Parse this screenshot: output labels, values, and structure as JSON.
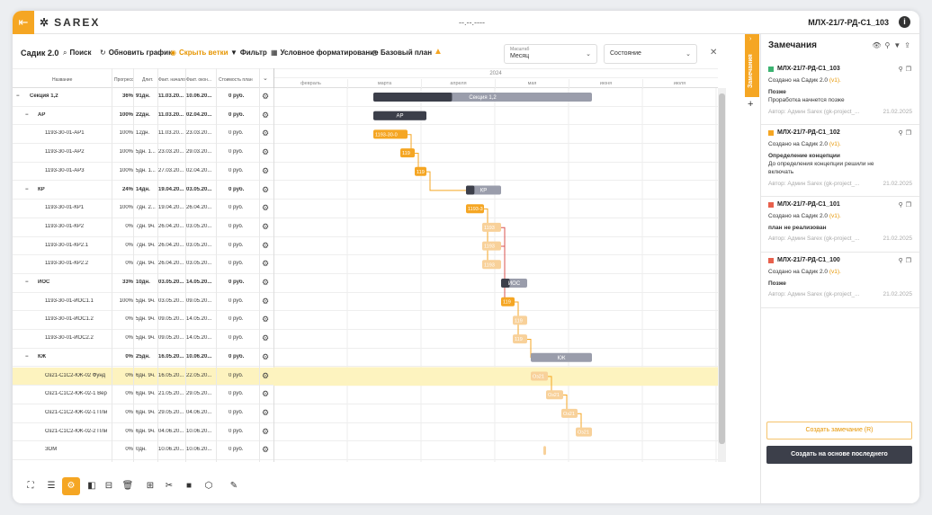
{
  "header": {
    "logo": "SAREX",
    "logo_mark": "✲",
    "center": "--.--.----",
    "project": "МЛХ-21/7-РД-С1_103",
    "info_icon": "i"
  },
  "toolbar": {
    "title": "Садик 2.0",
    "search": "Поиск",
    "refresh": "Обновить график",
    "hide": "Скрыть ветки",
    "filter": "Фильтр",
    "cond": "Условное форматирование",
    "baseline": "Базовый план",
    "scale_label": "Масштаб",
    "scale_value": "Месяц",
    "state_value": "Состояние"
  },
  "columns": {
    "name": "Название",
    "progress": "Прогресс",
    "duration": "Длит.",
    "fact_start": "Факт. начало",
    "fact_end": "Факт. окон...",
    "cost": "Стоимость план"
  },
  "timeline": {
    "year": "2024",
    "months": [
      "февраль",
      "марта",
      "апреля",
      "мая",
      "июня",
      "июля"
    ]
  },
  "rows": [
    {
      "lvl": 0,
      "toggle": "−",
      "name": "Секция 1,2",
      "progress": "36%",
      "duration": "91дн.",
      "start": "11.03.20...",
      "end": "10.06.20...",
      "cost": "0 руб.",
      "bold": true,
      "bar": {
        "s": 111,
        "e": 354,
        "type": "group",
        "fill": 0.36,
        "label": "Секция 1,2"
      }
    },
    {
      "lvl": 1,
      "toggle": "−",
      "name": "АР",
      "progress": "100%",
      "duration": "22дн.",
      "start": "11.03.20...",
      "end": "02.04.20...",
      "cost": "0 руб.",
      "bold": true,
      "bar": {
        "s": 111,
        "e": 170,
        "type": "group",
        "fill": 1,
        "label": "АР"
      }
    },
    {
      "lvl": 2,
      "name": "1193-30-01-АР1",
      "progress": "100%",
      "duration": "12дн.",
      "start": "11.03.20...",
      "end": "23.03.20...",
      "cost": "0 руб.",
      "bar": {
        "s": 111,
        "e": 149,
        "type": "task",
        "label": "1193-30-0"
      }
    },
    {
      "lvl": 2,
      "name": "1193-30-01-АР2",
      "progress": "100%",
      "duration": "5дн. 1...",
      "start": "23.03.20...",
      "end": "29.03.20...",
      "cost": "0 руб.",
      "bar": {
        "s": 141,
        "e": 157,
        "type": "task",
        "label": "119"
      }
    },
    {
      "lvl": 2,
      "name": "1193-30-01-АР3",
      "progress": "100%",
      "duration": "5дн. 1...",
      "start": "27.03.20...",
      "end": "02.04.20...",
      "cost": "0 руб.",
      "bar": {
        "s": 157,
        "e": 170,
        "type": "task",
        "label": "119"
      }
    },
    {
      "lvl": 1,
      "toggle": "−",
      "name": "КР",
      "progress": "24%",
      "duration": "14дн.",
      "start": "19.04.20...",
      "end": "03.05.20...",
      "cost": "0 руб.",
      "bold": true,
      "bar": {
        "s": 214,
        "e": 253,
        "type": "group",
        "fill": 0.24,
        "label": "КР"
      }
    },
    {
      "lvl": 2,
      "name": "1193-30-01-КР1",
      "progress": "100%",
      "duration": "7дн. 2...",
      "start": "19.04.20...",
      "end": "26.04.20...",
      "cost": "0 руб.",
      "bar": {
        "s": 214,
        "e": 234,
        "type": "task",
        "label": "1193-3"
      }
    },
    {
      "lvl": 2,
      "name": "1193-30-01-КР2",
      "progress": "0%",
      "duration": "7дн. 9ч.",
      "start": "26.04.20...",
      "end": "03.05.20...",
      "cost": "0 руб.",
      "bar": {
        "s": 232,
        "e": 253,
        "type": "light",
        "label": "1193"
      }
    },
    {
      "lvl": 2,
      "name": "1193-30-01-КР2.1",
      "progress": "0%",
      "duration": "7дн. 9ч.",
      "start": "26.04.20...",
      "end": "03.05.20...",
      "cost": "0 руб.",
      "bar": {
        "s": 232,
        "e": 253,
        "type": "light",
        "label": "1193"
      }
    },
    {
      "lvl": 2,
      "name": "1193-30-01-КР2.2",
      "progress": "0%",
      "duration": "7дн. 9ч.",
      "start": "26.04.20...",
      "end": "03.05.20...",
      "cost": "0 руб.",
      "bar": {
        "s": 232,
        "e": 253,
        "type": "light",
        "label": "1193"
      }
    },
    {
      "lvl": 1,
      "toggle": "−",
      "name": "ИОС",
      "progress": "33%",
      "duration": "10дн.",
      "start": "03.05.20...",
      "end": "14.05.20...",
      "cost": "0 руб.",
      "bold": true,
      "bar": {
        "s": 253,
        "e": 282,
        "type": "group",
        "fill": 0.33,
        "label": "ИОС"
      }
    },
    {
      "lvl": 2,
      "name": "1193-30-01-ИОС1.1",
      "progress": "100%",
      "duration": "5дн. 9ч.",
      "start": "03.05.20...",
      "end": "09.05.20...",
      "cost": "0 руб.",
      "bar": {
        "s": 253,
        "e": 268,
        "type": "task",
        "label": "119"
      }
    },
    {
      "lvl": 2,
      "name": "1193-30-01-ИОС1.2",
      "progress": "0%",
      "duration": "5дн. 9ч.",
      "start": "09.05.20...",
      "end": "14.05.20...",
      "cost": "0 руб.",
      "bar": {
        "s": 266,
        "e": 282,
        "type": "light",
        "label": "119"
      }
    },
    {
      "lvl": 2,
      "name": "1193-30-01-ИОС2.2",
      "progress": "0%",
      "duration": "5дн. 9ч.",
      "start": "09.05.20...",
      "end": "14.05.20...",
      "cost": "0 руб.",
      "bar": {
        "s": 266,
        "e": 282,
        "type": "light",
        "label": "119"
      }
    },
    {
      "lvl": 1,
      "toggle": "−",
      "name": "КЖ",
      "progress": "0%",
      "duration": "25дн.",
      "start": "16.05.20...",
      "end": "10.06.20...",
      "cost": "0 руб.",
      "bold": true,
      "bar": {
        "s": 286,
        "e": 354,
        "type": "group",
        "fill": 0,
        "label": "КЖ"
      }
    },
    {
      "lvl": 2,
      "name": "Оз21-С1С2-КЖ-02 Фунд",
      "progress": "0%",
      "duration": "6дн. 9ч.",
      "start": "16.05.20...",
      "end": "22.05.20...",
      "cost": "0 руб.",
      "hl": true,
      "bar": {
        "s": 286,
        "e": 305,
        "type": "light",
        "label": "Оз21"
      }
    },
    {
      "lvl": 2,
      "name": "Оз21-С1С2-КЖ-02-1 Вер",
      "progress": "0%",
      "duration": "6дн. 9ч.",
      "start": "21.05.20...",
      "end": "29.05.20...",
      "cost": "0 руб.",
      "bar": {
        "s": 303,
        "e": 322,
        "type": "light",
        "label": "Оз21"
      }
    },
    {
      "lvl": 2,
      "name": "Оз21-С1С2-КЖ-02-1 Пли",
      "progress": "0%",
      "duration": "6дн. 9ч.",
      "start": "29.05.20...",
      "end": "04.06.20...",
      "cost": "0 руб.",
      "bar": {
        "s": 320,
        "e": 338,
        "type": "light",
        "label": "Оз21"
      }
    },
    {
      "lvl": 2,
      "name": "Оз21-С1С2-КЖ-02-2 Пли",
      "progress": "0%",
      "duration": "6дн. 9ч.",
      "start": "04.06.20...",
      "end": "10.06.20...",
      "cost": "0 руб.",
      "bar": {
        "s": 336,
        "e": 354,
        "type": "light",
        "label": "Оз21"
      }
    },
    {
      "lvl": 2,
      "name": "ЗОМ",
      "progress": "0%",
      "duration": "0дн.",
      "start": "10.06.20...",
      "end": "10.06.20...",
      "cost": "0 руб.",
      "bar": {
        "s": 300,
        "e": 303,
        "type": "light",
        "label": ""
      }
    }
  ],
  "panel": {
    "title": "Замечания",
    "cards": [
      {
        "code": "МЛХ-21/7-РД-С1_103",
        "color": "#3cb371",
        "created": "Создано на Садик 2.0",
        "ver": "(v1).",
        "title": "Позже",
        "body": [
          "Проработка начнется позже"
        ],
        "author": "Автор: Админ Sarex (gk-project_...",
        "date": "21.02.2025"
      },
      {
        "code": "МЛХ-21/7-РД-С1_102",
        "color": "#f5a623",
        "created": "Создано на Садик 2.0",
        "ver": "(v1).",
        "title": "Определение концепции",
        "body": [
          "До определения концепции решили не",
          "включать"
        ],
        "author": "Автор: Админ Sarex (gk-project_...",
        "date": "21.02.2025"
      },
      {
        "code": "МЛХ-21/7-РД-С1_101",
        "color": "#e8604c",
        "created": "Создано на Садик 2.0",
        "ver": "(v1).",
        "title": "план не реализован",
        "body": [],
        "author": "Автор: Админ Sarex (gk-project_...",
        "date": "21.02.2025"
      },
      {
        "code": "МЛХ-21/7-РД-С1_100",
        "color": "#e8604c",
        "created": "Создано на Садик 2.0",
        "ver": "(v1).",
        "title": "Позже",
        "body": [],
        "author": "Автор: Админ Sarex (gk-project_...",
        "date": "21.02.2025"
      }
    ],
    "create": "Создать замечание (R)",
    "create_last": "Создать на основе последнего",
    "sidetab": "Замечания"
  }
}
